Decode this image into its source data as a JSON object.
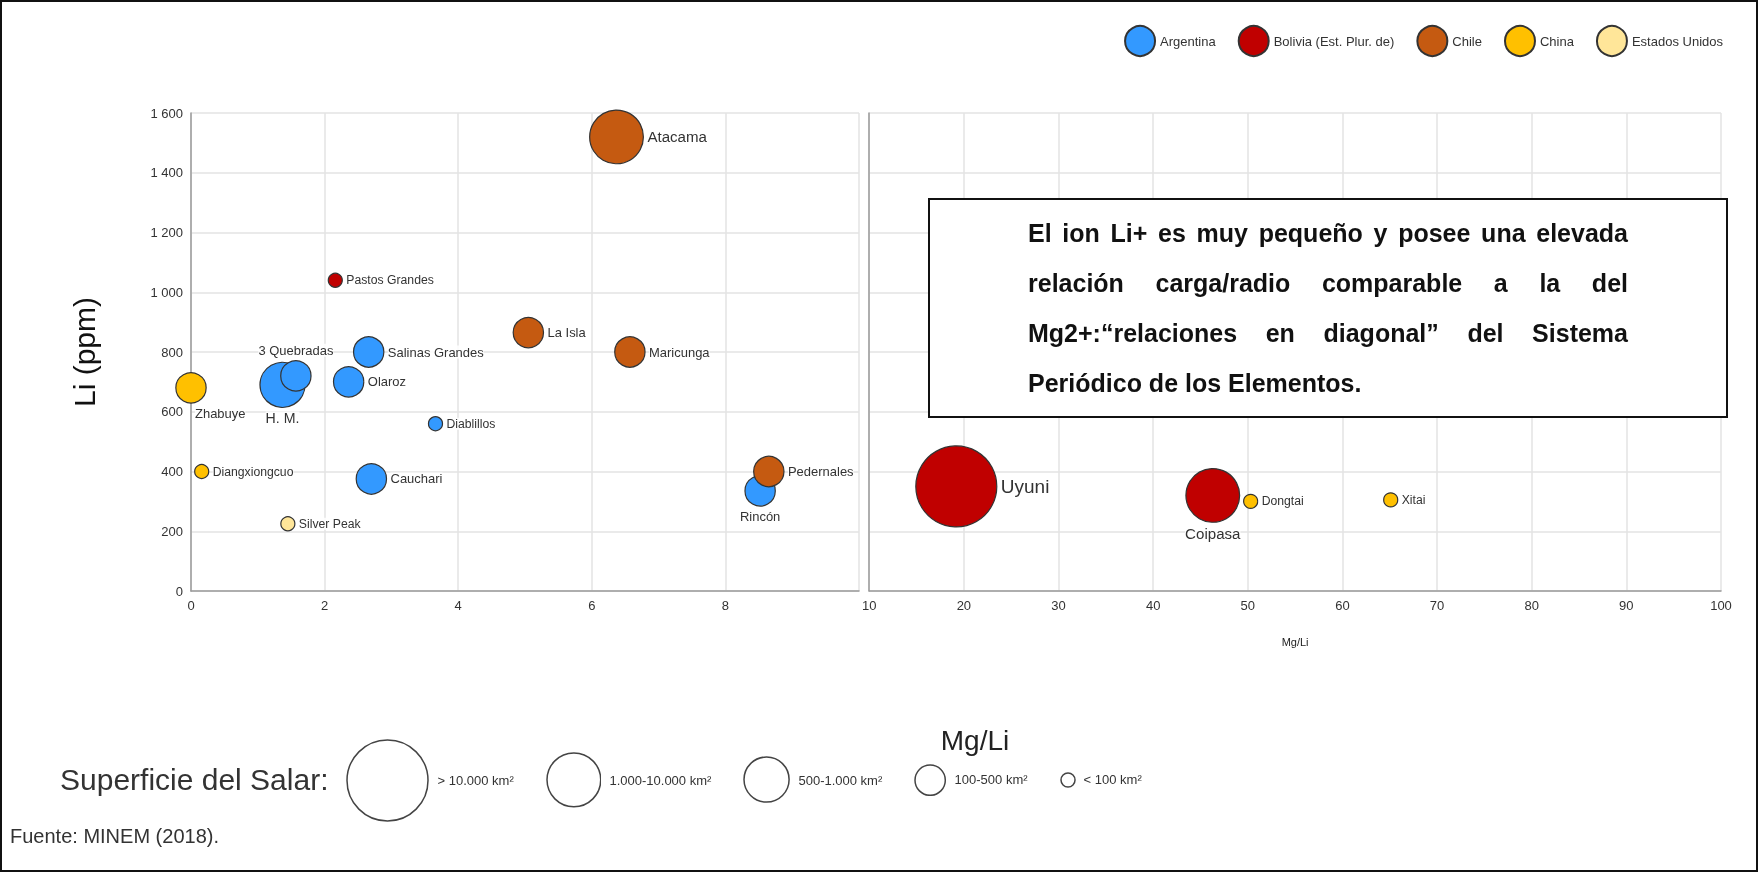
{
  "chart_data": [
    {
      "type": "bubble",
      "ylabel": "Li (ppm)",
      "xlabel": "Mg/Li",
      "xlim": [
        0,
        10
      ],
      "xticks": [
        0,
        2,
        4,
        6,
        8,
        {
          "value": 10,
          "label": null
        }
      ],
      "ylim": [
        0,
        1600
      ],
      "yticks": [
        0,
        200,
        400,
        600,
        800,
        {
          "value": 1000,
          "label": "1 000"
        },
        {
          "value": 1200,
          "label": "1 200"
        },
        {
          "value": 1400,
          "label": "1 400"
        },
        {
          "value": 1600,
          "label": "1 600"
        }
      ],
      "grid": true,
      "legend": "top right",
      "marker": "circle",
      "size_legend": [
        {
          "value": 1,
          "label": "> 10.000 km²"
        },
        {
          "value": 0.44,
          "label": "1.000-10.000 km²"
        },
        {
          "value": 0.31,
          "label": "500-1.000 km²"
        },
        {
          "value": 0.14,
          "label": "100-500 km²"
        },
        {
          "value": 0.03,
          "label": "< 100 km²"
        }
      ],
      "annotations": [
        "El ion Li+ es muy pequeño y posee una elevada relación carga/radio comparable a la del Mg2+:“relaciones en diagonal” del Sistema Periódico de los Elementos.",
        "Superficie del Salar:",
        "Fuente: MINEM (2018).",
        {
          "text": "H. M.",
          "x": 1.37,
          "y": 690
        },
        {
          "text": "3 Quebradas",
          "x": 1.57,
          "y": 720
        },
        {
          "text": "Salinas Grandes",
          "x": 2.66,
          "y": 800
        },
        {
          "text": "Olaroz",
          "x": 2.36,
          "y": 700
        },
        {
          "text": "Diablillos",
          "x": 3.66,
          "y": 560
        },
        {
          "text": "Cauchari",
          "x": 2.7,
          "y": 375
        },
        {
          "text": "Rincón",
          "x": 8.52,
          "y": 335
        },
        {
          "text": "Pastos Grandes",
          "x": 2.16,
          "y": 1040
        },
        {
          "text": "Atacama",
          "x": 6.37,
          "y": 1520
        },
        {
          "text": "La Isla",
          "x": 5.05,
          "y": 865
        },
        {
          "text": "Maricunga",
          "x": 6.57,
          "y": 800
        },
        {
          "text": "Pedernales",
          "x": 8.65,
          "y": 400
        },
        {
          "text": "Zhabuye",
          "x": 0,
          "y": 680
        },
        {
          "text": "Diangxiongcuo",
          "x": 0.16,
          "y": 400
        },
        {
          "text": "Silver Peak",
          "x": 1.45,
          "y": 225
        }
      ],
      "series": [
        {
          "name": "Argentina",
          "color": "#3399ff",
          "x": [
            1.37,
            1.57,
            2.66,
            2.36,
            3.66,
            2.7,
            8.52
          ],
          "values": [
            690,
            720,
            800,
            700,
            560,
            375,
            335
          ],
          "sizes": [
            0.31,
            0.14,
            0.14,
            0.14,
            0.03,
            0.14,
            0.14
          ]
        },
        {
          "name": "Bolivia (Est. Plur. de)",
          "color": "#c00000",
          "x": [
            2.16
          ],
          "values": [
            1040
          ],
          "sizes": [
            0.03
          ]
        },
        {
          "name": "Chile",
          "color": "#c55a11",
          "x": [
            6.37,
            5.05,
            6.57,
            8.65
          ],
          "values": [
            1520,
            865,
            800,
            400
          ],
          "sizes": [
            0.44,
            0.14,
            0.14,
            0.14
          ]
        },
        {
          "name": "China",
          "color": "#ffc000",
          "x": [
            0,
            0.16
          ],
          "values": [
            680,
            400
          ],
          "sizes": [
            0.14,
            0.03
          ]
        },
        {
          "name": "Estados Unidos",
          "color": "#ffe699",
          "x": [
            1.45
          ],
          "values": [
            225
          ],
          "sizes": [
            0.03
          ]
        }
      ]
    },
    {
      "type": "bubble",
      "xlabel": "Mg/Li",
      "xlim": [
        10,
        100
      ],
      "xticks": [
        10,
        20,
        30,
        40,
        50,
        60,
        70,
        80,
        90,
        100
      ],
      "ylim": [
        0,
        1600
      ],
      "yticks": [
        0,
        200,
        400,
        600,
        800,
        1000,
        1200,
        1400,
        1600
      ],
      "tick_labels": "x",
      "grid": true,
      "marker": "circle",
      "annotations": [
        {
          "text": "Uyuni",
          "x": 19.2,
          "y": 350
        },
        {
          "text": "Coipasa",
          "x": 46.3,
          "y": 320
        },
        {
          "text": "Dongtai",
          "x": 50.3,
          "y": 300
        },
        {
          "text": "Xitai",
          "x": 65.1,
          "y": 305
        }
      ],
      "series": [
        {
          "name": "Bolivia (Est. Plur. de)",
          "color": "#c00000",
          "x": [
            19.2,
            46.3
          ],
          "values": [
            350,
            320
          ],
          "sizes": [
            1,
            0.44
          ]
        },
        {
          "name": "China",
          "color": "#ffc000",
          "x": [
            50.3,
            65.1
          ],
          "values": [
            300,
            305
          ],
          "sizes": [
            0.03,
            0.03
          ]
        }
      ]
    }
  ]
}
